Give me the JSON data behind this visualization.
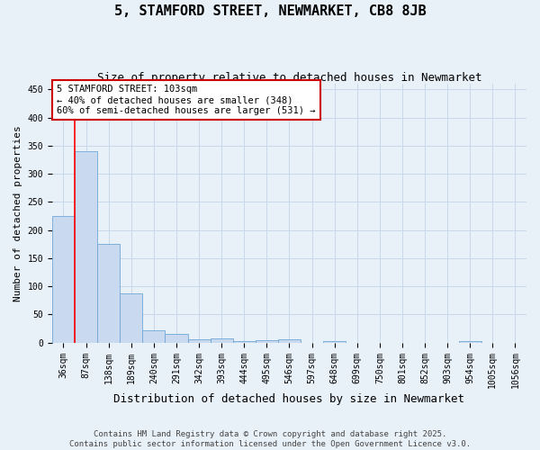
{
  "title": "5, STAMFORD STREET, NEWMARKET, CB8 8JB",
  "subtitle": "Size of property relative to detached houses in Newmarket",
  "xlabel": "Distribution of detached houses by size in Newmarket",
  "ylabel": "Number of detached properties",
  "bar_labels": [
    "36sqm",
    "87sqm",
    "138sqm",
    "189sqm",
    "240sqm",
    "291sqm",
    "342sqm",
    "393sqm",
    "444sqm",
    "495sqm",
    "546sqm",
    "597sqm",
    "648sqm",
    "699sqm",
    "750sqm",
    "801sqm",
    "852sqm",
    "903sqm",
    "954sqm",
    "1005sqm",
    "1056sqm"
  ],
  "bar_values": [
    225,
    340,
    175,
    88,
    22,
    15,
    5,
    8,
    3,
    4,
    5,
    0,
    2,
    0,
    0,
    0,
    0,
    0,
    2,
    0,
    0
  ],
  "bar_color": "#c9d9f0",
  "bar_edge_color": "#6fa8d6",
  "red_line_x": 0.5,
  "annotation_text": "5 STAMFORD STREET: 103sqm\n← 40% of detached houses are smaller (348)\n60% of semi-detached houses are larger (531) →",
  "annotation_box_facecolor": "#ffffff",
  "annotation_box_edgecolor": "#cc0000",
  "ylim": [
    0,
    460
  ],
  "yticks": [
    0,
    50,
    100,
    150,
    200,
    250,
    300,
    350,
    400,
    450
  ],
  "grid_color": "#c8d8ea",
  "background_color": "#e8f0f8",
  "footer_text": "Contains HM Land Registry data © Crown copyright and database right 2025.\nContains public sector information licensed under the Open Government Licence v3.0.",
  "title_fontsize": 11,
  "subtitle_fontsize": 9,
  "xlabel_fontsize": 9,
  "ylabel_fontsize": 8,
  "tick_fontsize": 7,
  "annotation_fontsize": 7.5,
  "footer_fontsize": 6.5
}
